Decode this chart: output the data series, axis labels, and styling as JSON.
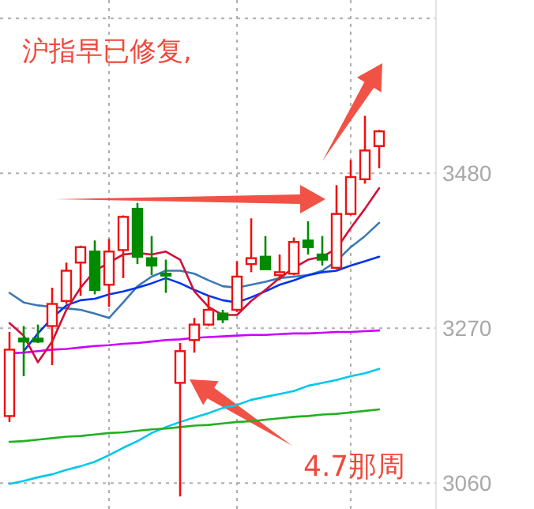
{
  "chart_data": {
    "type": "candlestick",
    "categories": [
      null,
      null,
      null,
      null,
      null,
      null,
      null,
      null,
      null,
      null,
      null,
      null,
      null,
      null,
      null,
      null,
      null,
      null,
      null,
      null,
      null,
      null,
      null,
      null,
      null,
      null,
      null
    ],
    "ohlc": [
      [
        3151,
        3265,
        3143,
        3241
      ],
      [
        3256,
        3273,
        3205,
        3252
      ],
      [
        3256,
        3275,
        3250,
        3252
      ],
      [
        3273,
        3325,
        3220,
        3303
      ],
      [
        3307,
        3359,
        3303,
        3348
      ],
      [
        3359,
        3382,
        3314,
        3380
      ],
      [
        3374,
        3389,
        3316,
        3322
      ],
      [
        3329,
        3391,
        3299,
        3374
      ],
      [
        3376,
        3423,
        3338,
        3421
      ],
      [
        3432,
        3440,
        3357,
        3367
      ],
      [
        3365,
        3395,
        3342,
        3355
      ],
      [
        3344,
        3363,
        3318,
        3342
      ],
      [
        3196,
        3250,
        3042,
        3239
      ],
      [
        3254,
        3284,
        3237,
        3275
      ],
      [
        3275,
        3314,
        3273,
        3295
      ],
      [
        3290,
        3295,
        3277,
        3282
      ],
      [
        3295,
        3361,
        3292,
        3340
      ],
      [
        3357,
        3419,
        3346,
        3365
      ],
      [
        3367,
        3395,
        3350,
        3350
      ],
      [
        3342,
        3370,
        3335,
        3346
      ],
      [
        3344,
        3393,
        3342,
        3387
      ],
      [
        3389,
        3415,
        3370,
        3380
      ],
      [
        3370,
        3395,
        3355,
        3363
      ],
      [
        3352,
        3464,
        3350,
        3425
      ],
      [
        3425,
        3498,
        3423,
        3475
      ],
      [
        3472,
        3558,
        3466,
        3511
      ],
      [
        3517,
        3539,
        3487,
        3537
      ]
    ],
    "colors": [
      "#ee1111",
      "#008a00",
      "#008a00",
      "#ee1111",
      "#ee1111",
      "#ee1111",
      "#008a00",
      "#ee1111",
      "#ee1111",
      "#008a00",
      "#008a00",
      "#008a00",
      "#ee1111",
      "#ee1111",
      "#ee1111",
      "#008a00",
      "#ee1111",
      "#ee1111",
      "#008a00",
      "#ee1111",
      "#ee1111",
      "#008a00",
      "#008a00",
      "#ee1111",
      "#ee1111",
      "#ee1111",
      "#ee1111"
    ],
    "series": [
      {
        "type": "line",
        "color": "#3c78b4",
        "values": [
          3318,
          3305,
          3301,
          3299,
          3297,
          3295,
          3290,
          3284,
          3305,
          3327,
          3340,
          3348,
          3348,
          3344,
          3335,
          3327,
          3325,
          3329,
          3333,
          3338,
          3340,
          3342,
          3348,
          3361,
          3380,
          3395,
          3413
        ]
      },
      {
        "type": "line",
        "color": "#0033ee",
        "values": [
          null,
          3239,
          3263,
          3284,
          3301,
          3308,
          3310,
          3316,
          3320,
          3325,
          3331,
          3338,
          3331,
          3322,
          3314,
          3308,
          3305,
          3312,
          3320,
          3329,
          3335,
          3342,
          3346,
          3348,
          3355,
          3361,
          3367
        ]
      },
      {
        "type": "line",
        "color": "#cc00ff",
        "values": [
          3236,
          3237,
          3239,
          3241,
          3242,
          3244,
          3246,
          3247,
          3249,
          3250,
          3252,
          3254,
          3255,
          3257,
          3258,
          3259,
          3260,
          3261,
          3261,
          3262,
          3263,
          3263,
          3264,
          3265,
          3265,
          3266,
          3267
        ]
      },
      {
        "type": "line",
        "color": "#00c8e8",
        "values": [
          3059,
          3063,
          3068,
          3072,
          3078,
          3083,
          3089,
          3098,
          3108,
          3117,
          3128,
          3136,
          3143,
          3149,
          3155,
          3162,
          3166,
          3173,
          3177,
          3181,
          3185,
          3192,
          3196,
          3200,
          3205,
          3209,
          3215
        ]
      },
      {
        "type": "line",
        "color": "#22b022",
        "values": [
          3116,
          3117,
          3119,
          3121,
          3123,
          3124,
          3126,
          3128,
          3129,
          3131,
          3133,
          3134,
          3136,
          3138,
          3139,
          3141,
          3143,
          3144,
          3146,
          3148,
          3150,
          3151,
          3153,
          3154,
          3156,
          3158,
          3160
        ]
      },
      {
        "type": "line",
        "color": "#d0103a",
        "values": [
          3277,
          3260,
          3224,
          3252,
          3295,
          3325,
          3348,
          3359,
          3370,
          3372,
          3370,
          3374,
          3363,
          3320,
          3299,
          3288,
          3288,
          3307,
          3322,
          3338,
          3352,
          3363,
          3367,
          3378,
          3406,
          3432,
          3460
        ]
      }
    ],
    "ylim": [
      3025,
      3715
    ],
    "yticks": [
      3060,
      3270,
      3480,
      {
        "value": 3690,
        "label": null
      }
    ],
    "grid": true,
    "annotations": [
      "沪指早已修复,",
      "4.7那周"
    ]
  }
}
